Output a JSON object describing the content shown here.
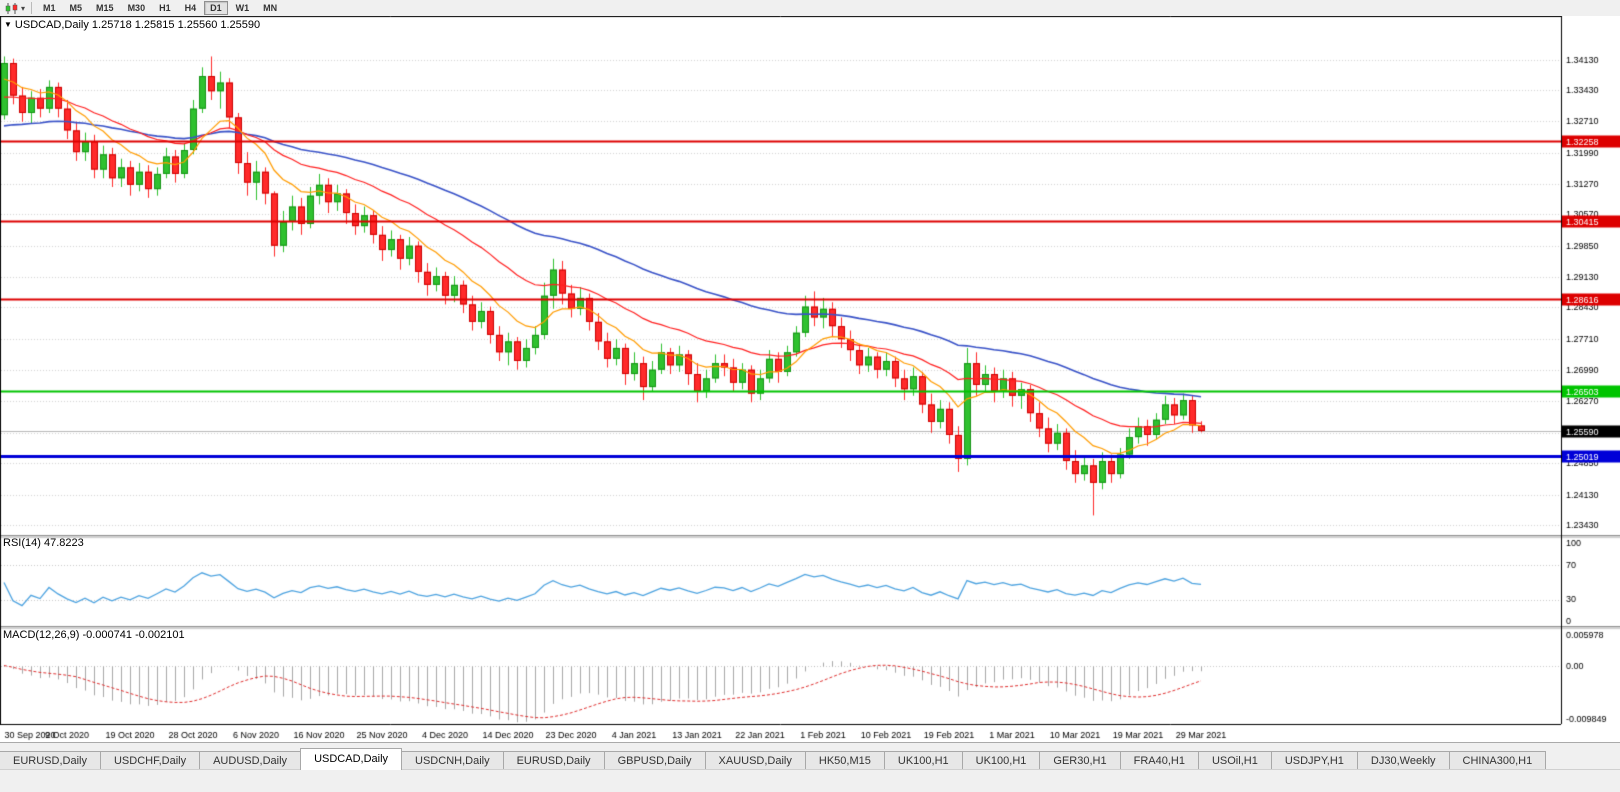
{
  "toolbar": {
    "timeframes": [
      "M1",
      "M5",
      "M15",
      "M30",
      "H1",
      "H4",
      "D1",
      "W1",
      "MN"
    ],
    "active_timeframe": "D1"
  },
  "chart": {
    "title": "USDCAD,Daily 1.25718 1.25815 1.25560 1.25590",
    "symbol": "USDCAD",
    "period": "Daily",
    "ohlc": {
      "open": "1.25718",
      "high": "1.25815",
      "low": "1.25560",
      "close": "1.25590"
    },
    "colors": {
      "up": "#2fc12f",
      "up_stroke": "#159415",
      "down": "#ff2a2a",
      "down_stroke": "#cc0000",
      "grid": "#d4d4d4",
      "cur_line": "#b8b8b8",
      "frame": "#000000"
    }
  },
  "rsi": {
    "title": "RSI(14) 47.8223",
    "period": 14,
    "value": "47.8223",
    "axis_labels": [
      "100",
      "70",
      "30",
      "0"
    ],
    "levels": [
      70,
      30
    ],
    "color": "#4da3e0"
  },
  "macd": {
    "title": "MACD(12,26,9) -0.000741 -0.002101",
    "main_value": "-0.000741",
    "signal_value": "-0.002101",
    "axis_labels": [
      "0.005978",
      "0.00",
      "-0.009849"
    ],
    "max": 0.005978,
    "min": -0.009849,
    "hist_color": "#a8a8a8",
    "signal_color": "#e03030"
  },
  "tabs": {
    "items": [
      "EURUSD,Daily",
      "USDCHF,Daily",
      "AUDUSD,Daily",
      "USDCAD,Daily",
      "USDCNH,Daily",
      "EURUSD,Daily",
      "GBPUSD,Daily",
      "XAUUSD,Daily",
      "HK50,M15",
      "UK100,H1",
      "UK100,H1",
      "GER30,H1",
      "FRA40,H1",
      "USOil,H1",
      "USDJPY,H1",
      "DJ30,Weekly",
      "CHINA300,H1"
    ],
    "active_index": 3
  },
  "chart_data": {
    "type": "candlestick",
    "symbol": "USDCAD",
    "timeframe": "Daily",
    "ylim": [
      1.232,
      1.3513
    ],
    "price_axis_labels": [
      "1.34130",
      "1.33430",
      "1.32710",
      "1.31990",
      "1.31270",
      "1.30570",
      "1.29850",
      "1.29130",
      "1.28430",
      "1.27710",
      "1.26990",
      "1.26270",
      "1.25550",
      "1.24850",
      "1.24130",
      "1.23430"
    ],
    "date_labels": [
      "30 Sep 2020",
      "9 Oct 2020",
      "19 Oct 2020",
      "28 Oct 2020",
      "6 Nov 2020",
      "16 Nov 2020",
      "25 Nov 2020",
      "4 Dec 2020",
      "14 Dec 2020",
      "23 Dec 2020",
      "4 Jan 2021",
      "13 Jan 2021",
      "22 Jan 2021",
      "1 Feb 2021",
      "10 Feb 2021",
      "19 Feb 2021",
      "1 Mar 2021",
      "10 Mar 2021",
      "19 Mar 2021",
      "29 Mar 2021"
    ],
    "label_every": 7,
    "hlines": [
      {
        "price": 1.32258,
        "label": "1.32258",
        "color": "#dd0000",
        "width": 2
      },
      {
        "price": 1.30415,
        "label": "1.30415",
        "color": "#dd0000",
        "width": 2
      },
      {
        "price": 1.28616,
        "label": "1.28616",
        "color": "#dd0000",
        "width": 2
      },
      {
        "price": 1.26503,
        "label": "1.26503",
        "color": "#00c400",
        "width": 2
      },
      {
        "price": 1.25019,
        "label": "1.25019",
        "color": "#0000d8",
        "width": 3
      }
    ],
    "current_price": {
      "value": 1.2559,
      "label": "1.25590",
      "color": "#000000"
    },
    "overlays": {
      "ma_fast": {
        "period": 10,
        "color": "#ff9c00",
        "seed": 1.336
      },
      "ma_mid": {
        "period": 25,
        "color": "#ff2020",
        "seed": 1.332
      },
      "ma_slow": {
        "period": 55,
        "color": "#3a53c8",
        "seed": 1.3255
      }
    },
    "indicators": [
      {
        "type": "RSI",
        "period": 14,
        "last": 47.8223
      },
      {
        "type": "MACD",
        "fast": 12,
        "slow": 26,
        "signal": 9,
        "last_main": -0.000741,
        "last_signal": -0.002101
      }
    ],
    "candles": [
      [
        1.3285,
        1.342,
        1.3275,
        1.3405
      ],
      [
        1.3405,
        1.3415,
        1.331,
        1.333
      ],
      [
        1.333,
        1.335,
        1.327,
        1.329
      ],
      [
        1.329,
        1.334,
        1.3265,
        1.3325
      ],
      [
        1.3325,
        1.3345,
        1.328,
        1.33
      ],
      [
        1.33,
        1.3365,
        1.329,
        1.335
      ],
      [
        1.335,
        1.336,
        1.328,
        1.33
      ],
      [
        1.33,
        1.332,
        1.323,
        1.325
      ],
      [
        1.325,
        1.327,
        1.318,
        1.32
      ],
      [
        1.32,
        1.3245,
        1.318,
        1.3225
      ],
      [
        1.3225,
        1.324,
        1.314,
        1.316
      ],
      [
        1.316,
        1.3215,
        1.314,
        1.3195
      ],
      [
        1.3195,
        1.321,
        1.312,
        1.314
      ],
      [
        1.314,
        1.3185,
        1.312,
        1.3165
      ],
      [
        1.3165,
        1.318,
        1.31,
        1.3125
      ],
      [
        1.3125,
        1.3175,
        1.311,
        1.3155
      ],
      [
        1.3155,
        1.317,
        1.3095,
        1.3115
      ],
      [
        1.3115,
        1.3165,
        1.31,
        1.315
      ],
      [
        1.315,
        1.321,
        1.314,
        1.319
      ],
      [
        1.319,
        1.3205,
        1.313,
        1.315
      ],
      [
        1.315,
        1.322,
        1.314,
        1.3205
      ],
      [
        1.3205,
        1.332,
        1.3195,
        1.33
      ],
      [
        1.33,
        1.3395,
        1.329,
        1.3375
      ],
      [
        1.3375,
        1.342,
        1.332,
        1.334
      ],
      [
        1.334,
        1.3385,
        1.33,
        1.336
      ],
      [
        1.336,
        1.337,
        1.3255,
        1.328
      ],
      [
        1.328,
        1.329,
        1.315,
        1.3175
      ],
      [
        1.3175,
        1.32,
        1.31,
        1.313
      ],
      [
        1.313,
        1.318,
        1.309,
        1.3155
      ],
      [
        1.3155,
        1.3165,
        1.308,
        1.3105
      ],
      [
        1.3105,
        1.311,
        1.296,
        1.2985
      ],
      [
        1.2985,
        1.3065,
        1.297,
        1.304
      ],
      [
        1.304,
        1.31,
        1.302,
        1.3075
      ],
      [
        1.3075,
        1.3095,
        1.301,
        1.3035
      ],
      [
        1.3035,
        1.312,
        1.3025,
        1.31
      ],
      [
        1.31,
        1.315,
        1.308,
        1.3125
      ],
      [
        1.3125,
        1.314,
        1.306,
        1.3085
      ],
      [
        1.3085,
        1.3125,
        1.3065,
        1.3105
      ],
      [
        1.3105,
        1.3115,
        1.3035,
        1.306
      ],
      [
        1.306,
        1.308,
        1.301,
        1.303
      ],
      [
        1.303,
        1.3075,
        1.3015,
        1.3055
      ],
      [
        1.3055,
        1.3065,
        1.299,
        1.301
      ],
      [
        1.301,
        1.303,
        1.295,
        1.2975
      ],
      [
        1.2975,
        1.302,
        1.296,
        1.3
      ],
      [
        1.3,
        1.301,
        1.293,
        1.2955
      ],
      [
        1.2955,
        1.3005,
        1.294,
        1.2985
      ],
      [
        1.2985,
        1.2995,
        1.29,
        1.2925
      ],
      [
        1.2925,
        1.2945,
        1.287,
        1.2895
      ],
      [
        1.2895,
        1.2935,
        1.288,
        1.2915
      ],
      [
        1.2915,
        1.2925,
        1.285,
        1.287
      ],
      [
        1.287,
        1.2915,
        1.2855,
        1.2895
      ],
      [
        1.2895,
        1.2905,
        1.283,
        1.285
      ],
      [
        1.285,
        1.287,
        1.279,
        1.281
      ],
      [
        1.281,
        1.2855,
        1.2795,
        1.2835
      ],
      [
        1.2835,
        1.2845,
        1.276,
        1.278
      ],
      [
        1.278,
        1.28,
        1.272,
        1.274
      ],
      [
        1.274,
        1.2785,
        1.271,
        1.2765
      ],
      [
        1.2765,
        1.2775,
        1.27,
        1.272
      ],
      [
        1.272,
        1.277,
        1.2705,
        1.275
      ],
      [
        1.275,
        1.28,
        1.2735,
        1.278
      ],
      [
        1.278,
        1.29,
        1.277,
        1.287
      ],
      [
        1.287,
        1.2955,
        1.284,
        1.293
      ],
      [
        1.293,
        1.295,
        1.285,
        1.2875
      ],
      [
        1.2875,
        1.2895,
        1.282,
        1.284
      ],
      [
        1.284,
        1.289,
        1.2825,
        1.2865
      ],
      [
        1.2865,
        1.2875,
        1.279,
        1.281
      ],
      [
        1.281,
        1.283,
        1.2745,
        1.2765
      ],
      [
        1.2765,
        1.2785,
        1.2705,
        1.2725
      ],
      [
        1.2725,
        1.277,
        1.271,
        1.275
      ],
      [
        1.275,
        1.276,
        1.2665,
        1.269
      ],
      [
        1.269,
        1.274,
        1.2675,
        1.2715
      ],
      [
        1.2715,
        1.273,
        1.263,
        1.266
      ],
      [
        1.266,
        1.272,
        1.265,
        1.27
      ],
      [
        1.27,
        1.276,
        1.269,
        1.274
      ],
      [
        1.274,
        1.275,
        1.269,
        1.271
      ],
      [
        1.271,
        1.2755,
        1.2695,
        1.2735
      ],
      [
        1.2735,
        1.2745,
        1.2665,
        1.269
      ],
      [
        1.269,
        1.2715,
        1.2625,
        1.265
      ],
      [
        1.265,
        1.27,
        1.2635,
        1.268
      ],
      [
        1.268,
        1.2735,
        1.267,
        1.2715
      ],
      [
        1.2715,
        1.2735,
        1.2685,
        1.2705
      ],
      [
        1.2705,
        1.2725,
        1.265,
        1.267
      ],
      [
        1.267,
        1.2715,
        1.2655,
        1.27
      ],
      [
        1.27,
        1.271,
        1.2625,
        1.2645
      ],
      [
        1.2645,
        1.27,
        1.263,
        1.268
      ],
      [
        1.268,
        1.2745,
        1.267,
        1.2725
      ],
      [
        1.2725,
        1.274,
        1.267,
        1.2695
      ],
      [
        1.2695,
        1.2755,
        1.2685,
        1.274
      ],
      [
        1.274,
        1.28,
        1.273,
        1.2785
      ],
      [
        1.2785,
        1.287,
        1.2775,
        1.2845
      ],
      [
        1.2845,
        1.288,
        1.28,
        1.282
      ],
      [
        1.282,
        1.2865,
        1.2795,
        1.284
      ],
      [
        1.284,
        1.2855,
        1.2775,
        1.28
      ],
      [
        1.28,
        1.282,
        1.275,
        1.277
      ],
      [
        1.277,
        1.279,
        1.272,
        1.2745
      ],
      [
        1.2745,
        1.276,
        1.269,
        1.271
      ],
      [
        1.271,
        1.275,
        1.2695,
        1.273
      ],
      [
        1.273,
        1.274,
        1.268,
        1.27
      ],
      [
        1.27,
        1.274,
        1.2685,
        1.272
      ],
      [
        1.272,
        1.273,
        1.266,
        1.268
      ],
      [
        1.268,
        1.27,
        1.263,
        1.2655
      ],
      [
        1.2655,
        1.2705,
        1.264,
        1.2685
      ],
      [
        1.2685,
        1.2695,
        1.26,
        1.262
      ],
      [
        1.262,
        1.2645,
        1.2555,
        1.258
      ],
      [
        1.258,
        1.263,
        1.2565,
        1.261
      ],
      [
        1.261,
        1.2625,
        1.253,
        1.255
      ],
      [
        1.255,
        1.257,
        1.2465,
        1.2495
      ],
      [
        1.2495,
        1.275,
        1.248,
        1.2715
      ],
      [
        1.2715,
        1.274,
        1.264,
        1.2665
      ],
      [
        1.2665,
        1.271,
        1.265,
        1.269
      ],
      [
        1.269,
        1.2705,
        1.2625,
        1.265
      ],
      [
        1.265,
        1.27,
        1.2635,
        1.268
      ],
      [
        1.268,
        1.2695,
        1.2615,
        1.264
      ],
      [
        1.264,
        1.267,
        1.261,
        1.2655
      ],
      [
        1.2655,
        1.2665,
        1.258,
        1.26
      ],
      [
        1.26,
        1.2625,
        1.2545,
        1.2565
      ],
      [
        1.2565,
        1.259,
        1.251,
        1.253
      ],
      [
        1.253,
        1.2575,
        1.2515,
        1.2555
      ],
      [
        1.2555,
        1.2565,
        1.247,
        1.249
      ],
      [
        1.249,
        1.2515,
        1.244,
        1.246
      ],
      [
        1.246,
        1.25,
        1.2445,
        1.248
      ],
      [
        1.248,
        1.2495,
        1.2365,
        1.244
      ],
      [
        1.244,
        1.251,
        1.2425,
        1.249
      ],
      [
        1.249,
        1.2505,
        1.244,
        1.246
      ],
      [
        1.246,
        1.252,
        1.245,
        1.2505
      ],
      [
        1.2505,
        1.2565,
        1.2495,
        1.2545
      ],
      [
        1.2545,
        1.259,
        1.253,
        1.257
      ],
      [
        1.257,
        1.2585,
        1.2525,
        1.255
      ],
      [
        1.255,
        1.26,
        1.254,
        1.2585
      ],
      [
        1.2585,
        1.264,
        1.2575,
        1.262
      ],
      [
        1.262,
        1.2635,
        1.2575,
        1.2595
      ],
      [
        1.2595,
        1.2645,
        1.2585,
        1.263
      ],
      [
        1.263,
        1.264,
        1.2555,
        1.2572
      ],
      [
        1.25718,
        1.25815,
        1.2556,
        1.2559
      ]
    ]
  }
}
